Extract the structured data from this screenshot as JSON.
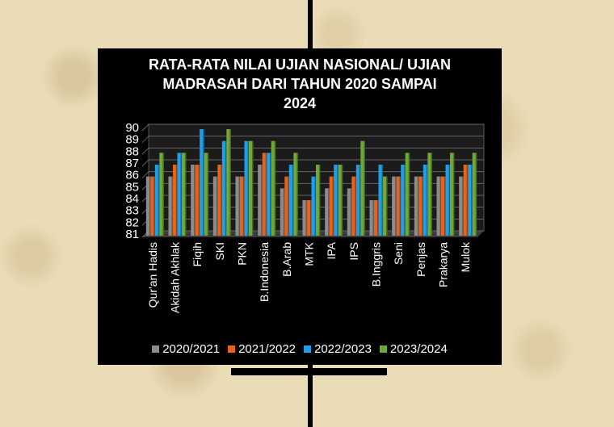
{
  "chart_data": {
    "type": "bar",
    "title_lines": [
      "RATA-RATA NILAI UJIAN NASIONAL/ UJIAN",
      "MADRASAH DARI TAHUN 2020 SAMPAI",
      "2024"
    ],
    "categories": [
      "Qur'an Hadis",
      "Akidah Akhlak",
      "Fiqih",
      "SKI",
      "PKN",
      "B.Indonesia",
      "B.Arab",
      "MTK",
      "IPA",
      "IPS",
      "B.Inggris",
      "Seni",
      "Penjas",
      "Prakarya",
      "Mulok"
    ],
    "series": [
      {
        "name": "2020/2021",
        "color": "#8c8c8c",
        "values": [
          86,
          86,
          87,
          86,
          86,
          87,
          85,
          84,
          85,
          85,
          84,
          86,
          86,
          86,
          86
        ]
      },
      {
        "name": "2021/2022",
        "color": "#e8621c",
        "values": [
          86,
          87,
          87,
          87,
          86,
          88,
          86,
          84,
          86,
          86,
          84,
          86,
          86,
          86,
          87
        ]
      },
      {
        "name": "2022/2023",
        "color": "#1e9fe6",
        "values": [
          87,
          88,
          90,
          89,
          89,
          88,
          87,
          86,
          87,
          87,
          87,
          87,
          87,
          87,
          87
        ]
      },
      {
        "name": "2023/2024",
        "color": "#6fa83a",
        "values": [
          88,
          88,
          88,
          90,
          89,
          89,
          88,
          87,
          87,
          89,
          86,
          88,
          88,
          88,
          88
        ]
      }
    ],
    "ylim": [
      81,
      90
    ],
    "yticks": [
      "81",
      "82",
      "83",
      "84",
      "85",
      "86",
      "87",
      "88",
      "89",
      "90"
    ],
    "grid": true,
    "legend_position": "bottom"
  }
}
